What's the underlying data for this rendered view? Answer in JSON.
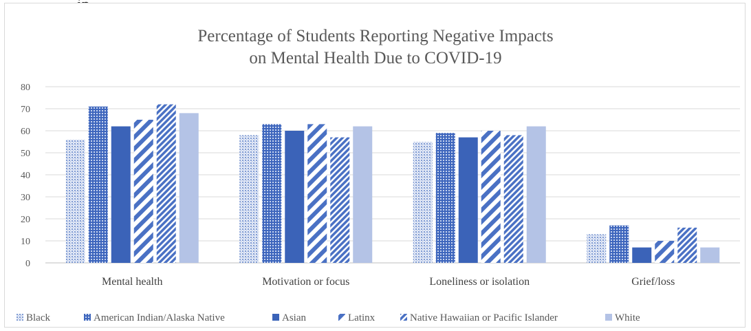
{
  "page_fragment": "ip",
  "chart_data": {
    "type": "bar",
    "title_lines": [
      "Percentage of Students Reporting Negative Impacts",
      "on Mental Health Due to COVID-19"
    ],
    "xlabel": "",
    "ylabel": "",
    "ylim": [
      0,
      80
    ],
    "yticks": [
      0,
      10,
      20,
      30,
      40,
      50,
      60,
      70,
      80
    ],
    "grid": true,
    "legend_position": "bottom",
    "categories": [
      "Mental health",
      "Motivation or focus",
      "Loneliness or isolation",
      "Grief/loss"
    ],
    "series": [
      {
        "name": "Black",
        "values": [
          56,
          58,
          55,
          13
        ],
        "color": "#a9bde3",
        "pattern": "dots"
      },
      {
        "name": "American Indian/Alaska Native",
        "values": [
          71,
          63,
          59,
          17
        ],
        "color": "#4a71c4",
        "pattern": "grid"
      },
      {
        "name": "Asian",
        "values": [
          62,
          60,
          57,
          7
        ],
        "color": "#3b63b8",
        "pattern": "solid"
      },
      {
        "name": "Latinx",
        "values": [
          65,
          63,
          60,
          10
        ],
        "color": "#4a71c4",
        "pattern": "wide-diagonal"
      },
      {
        "name": "Native Hawaiian or Pacific Islander",
        "values": [
          72,
          57,
          58,
          16
        ],
        "color": "#4a71c4",
        "pattern": "narrow-diagonal"
      },
      {
        "name": "White",
        "values": [
          68,
          62,
          62,
          7
        ],
        "color": "#b4c3e6",
        "pattern": "solid"
      }
    ]
  }
}
